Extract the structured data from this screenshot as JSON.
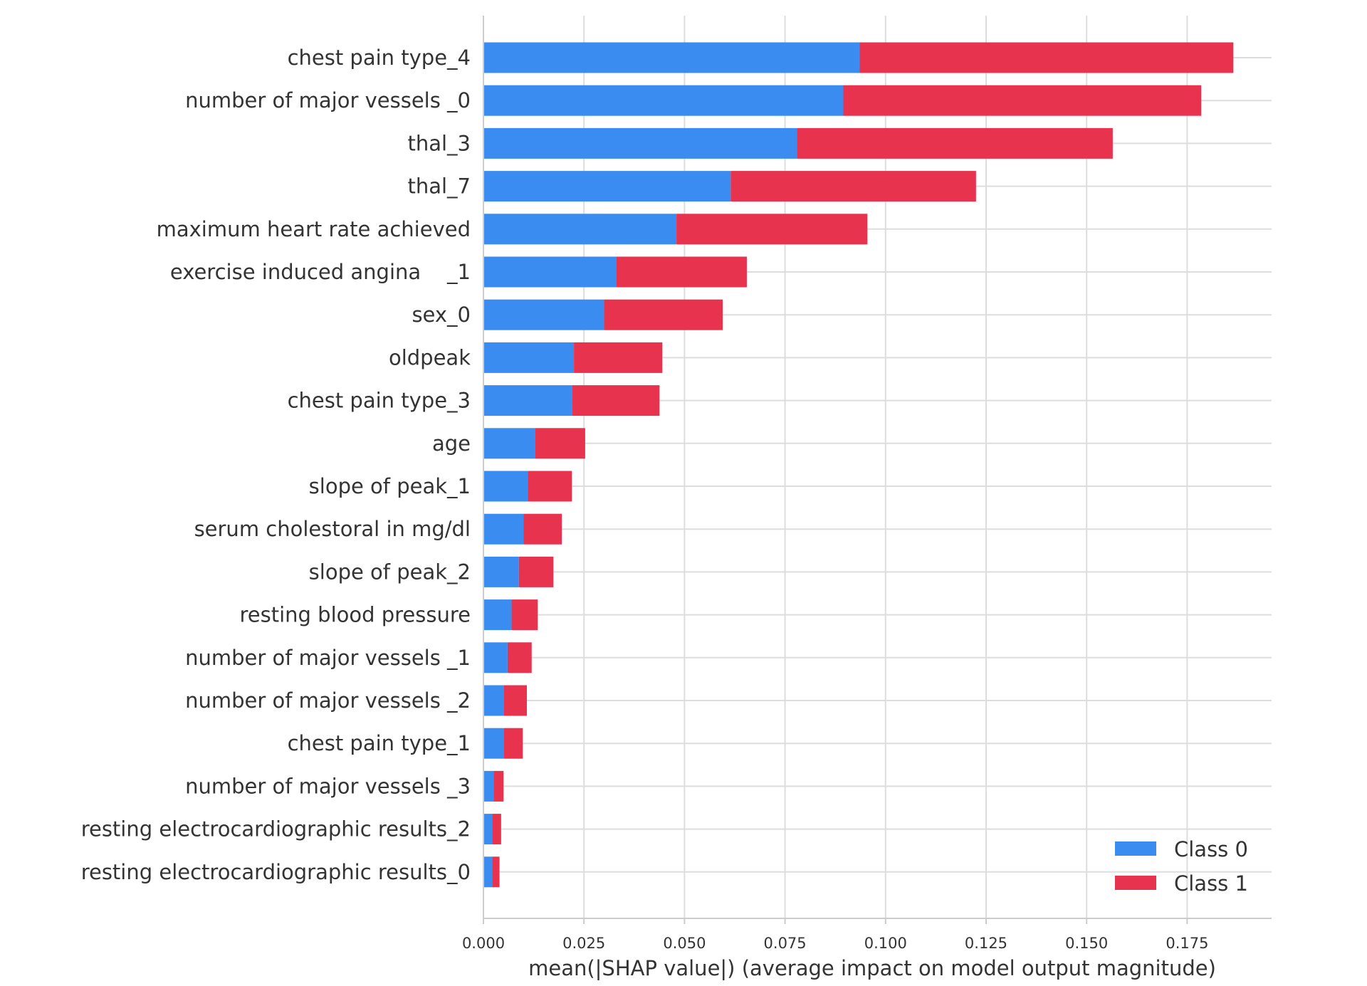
{
  "colors": {
    "class0": "#3a8cf0",
    "class1": "#e8334f",
    "grid": "#dddddd",
    "axis": "#cccccc",
    "text": "#333333"
  },
  "chart_data": {
    "type": "bar",
    "orientation": "horizontal",
    "stacked": true,
    "title": "",
    "xlabel": "mean(|SHAP value|) (average impact on model output magnitude)",
    "ylabel": "",
    "xlim": [
      0,
      0.196
    ],
    "xticks": [
      0.0,
      0.025,
      0.05,
      0.075,
      0.1,
      0.125,
      0.15,
      0.175
    ],
    "xtick_labels": [
      "0.000",
      "0.025",
      "0.050",
      "0.075",
      "0.100",
      "0.125",
      "0.150",
      "0.175"
    ],
    "grid": true,
    "legend_position": "bottom-right",
    "categories": [
      "chest pain type_4",
      "number of major vessels _0",
      "thal_3",
      "thal_7",
      "maximum heart rate achieved",
      "exercise induced angina    _1",
      "sex_0",
      "oldpeak",
      "chest pain type_3",
      "age",
      "slope of peak_1",
      "serum cholestoral in mg/dl",
      "slope of peak_2",
      "resting blood pressure",
      "number of major vessels _1",
      "number of major vessels _2",
      "chest pain type_1",
      "number of major vessels _3",
      "resting electrocardiographic results_2",
      "resting electrocardiographic results_0"
    ],
    "series": [
      {
        "name": "Class 0",
        "values": [
          0.0935,
          0.0895,
          0.078,
          0.0615,
          0.048,
          0.033,
          0.03,
          0.0225,
          0.022,
          0.0128,
          0.011,
          0.01,
          0.0088,
          0.007,
          0.006,
          0.005,
          0.005,
          0.0025,
          0.0022,
          0.0022
        ]
      },
      {
        "name": "Class 1",
        "values": [
          0.093,
          0.089,
          0.0785,
          0.061,
          0.0475,
          0.0325,
          0.0295,
          0.022,
          0.0218,
          0.0125,
          0.011,
          0.0095,
          0.0086,
          0.0065,
          0.006,
          0.0058,
          0.0048,
          0.0025,
          0.0022,
          0.0018
        ]
      }
    ]
  }
}
